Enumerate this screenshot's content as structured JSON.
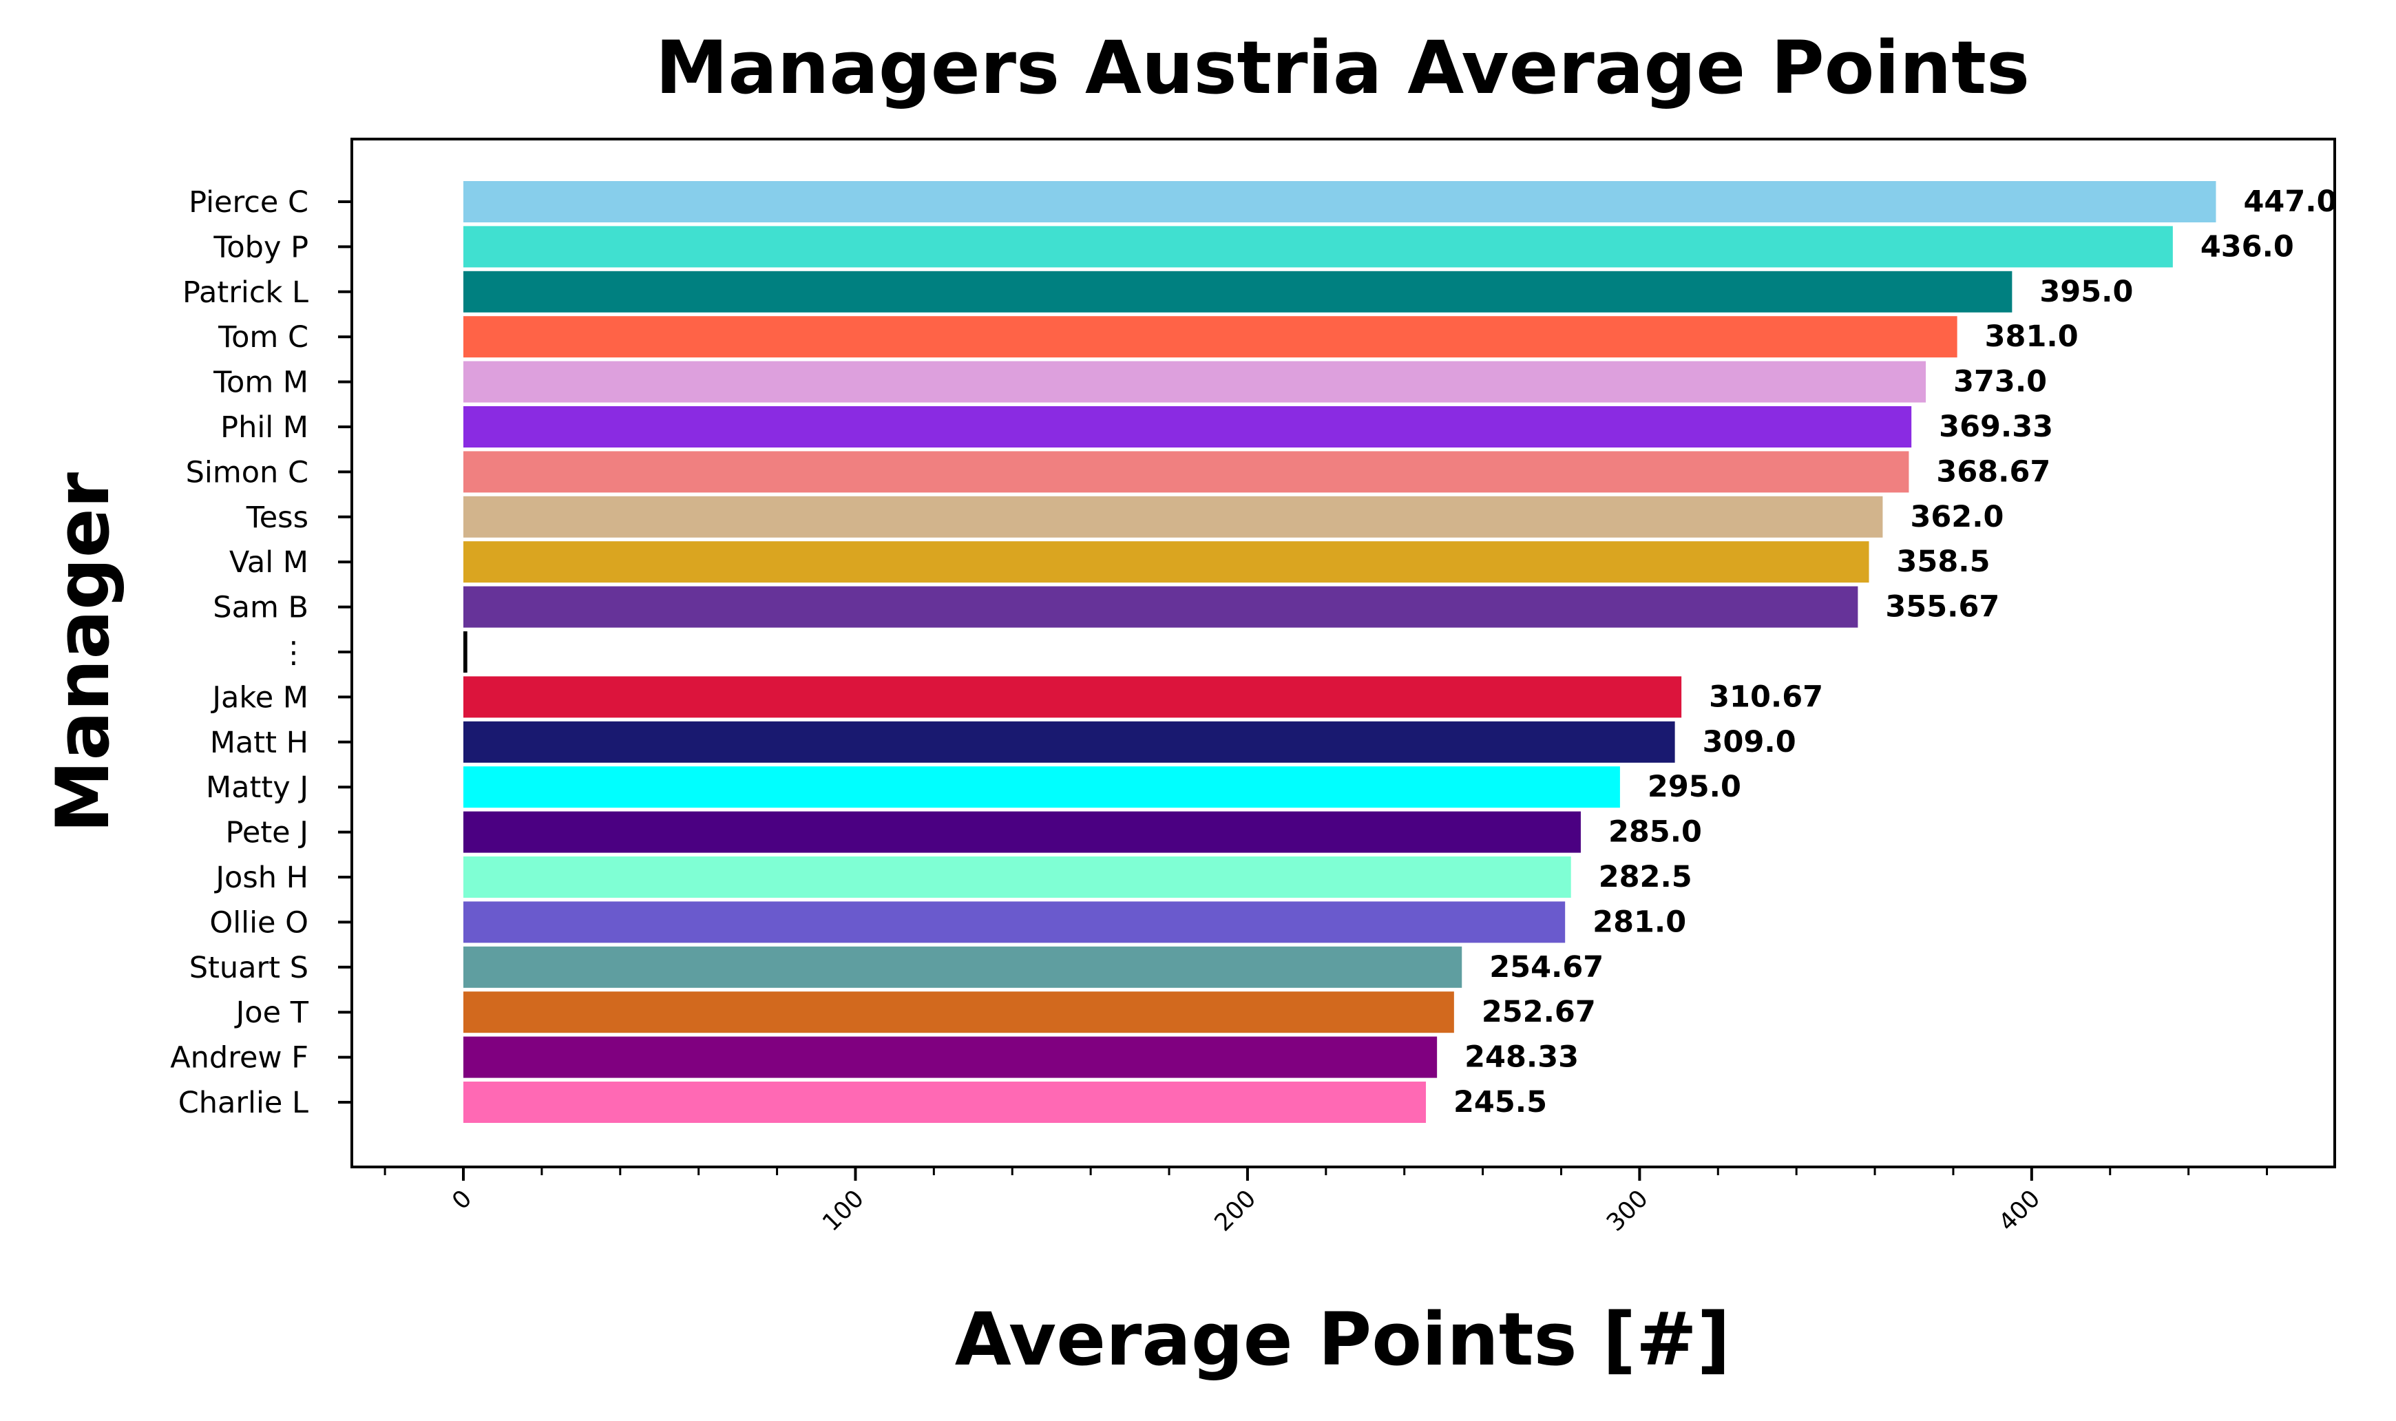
{
  "chart_data": {
    "type": "bar",
    "orientation": "horizontal",
    "title": "Managers Austria Average Points",
    "xlabel": "Average Points [#]",
    "ylabel": "Manager",
    "xlim": [
      -30,
      477
    ],
    "xticks": [
      0,
      100,
      200,
      300,
      400
    ],
    "grid": false,
    "legend": "none",
    "categories": [
      "Pierce C",
      "Toby P",
      "Patrick L",
      "Tom C",
      "Tom M",
      "Phil M",
      "Simon C",
      "Tess",
      "Val M",
      "Sam B",
      "⋮",
      "Jake M",
      "Matt H",
      "Matty J",
      "Pete J",
      "Josh H",
      "Ollie O",
      "Stuart S",
      "Joe T",
      "Andrew F",
      "Charlie L"
    ],
    "values": [
      447.0,
      436.0,
      395.0,
      381.0,
      373.0,
      369.33,
      368.67,
      362.0,
      358.5,
      355.67,
      1.0,
      310.67,
      309.0,
      295.0,
      285.0,
      282.5,
      281.0,
      254.67,
      252.67,
      248.33,
      245.5
    ],
    "value_labels": [
      "447.0",
      "436.0",
      "395.0",
      "381.0",
      "373.0",
      "369.33",
      "368.67",
      "362.0",
      "358.5",
      "355.67",
      "",
      "310.67",
      "309.0",
      "295.0",
      "285.0",
      "282.5",
      "281.0",
      "254.67",
      "252.67",
      "248.33",
      "245.5"
    ],
    "colors": [
      "#87ceeb",
      "#40e0d0",
      "#008080",
      "#ff6347",
      "#dda0dd",
      "#8a2be2",
      "#f08080",
      "#d2b48c",
      "#daa520",
      "#663399",
      "#000000",
      "#dc143c",
      "#191970",
      "#00ffff",
      "#4b0082",
      "#7fffd4",
      "#6a5acd",
      "#5f9ea0",
      "#d2691e",
      "#800080",
      "#ff69b4"
    ]
  }
}
